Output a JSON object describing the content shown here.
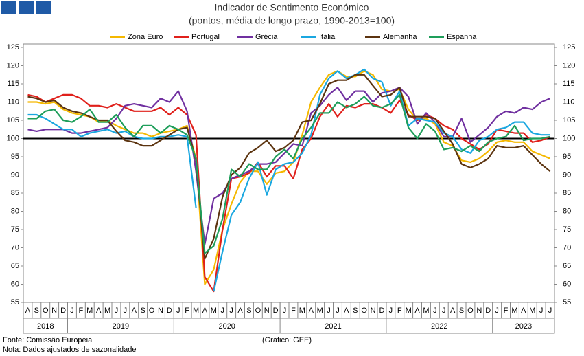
{
  "chart_data": {
    "type": "line",
    "title": "Indicador de Sentimento Económico",
    "subtitle": "(pontos, média de longo prazo, 1990-2013=100)",
    "source": "Fonte: Comissão Europeia",
    "note": "Nota: Dados ajustados de sazonalidade",
    "credit": "(Gráfico: GEE)",
    "categories": [
      "A",
      "S",
      "O",
      "N",
      "D",
      "J",
      "F",
      "M",
      "A",
      "M",
      "J",
      "J",
      "A",
      "S",
      "O",
      "N",
      "D",
      "J",
      "F",
      "M",
      "A",
      "M",
      "J",
      "J",
      "A",
      "S",
      "O",
      "N",
      "D",
      "J",
      "F",
      "M",
      "A",
      "M",
      "J",
      "J",
      "A",
      "S",
      "O",
      "N",
      "D",
      "J",
      "F",
      "M",
      "A",
      "M",
      "J",
      "J",
      "A",
      "S",
      "O",
      "N",
      "D",
      "J",
      "F",
      "M",
      "A",
      "M",
      "J",
      "J"
    ],
    "years": [
      "2018",
      "2019",
      "2020",
      "2021",
      "2022",
      "2023"
    ],
    "ylim": [
      55,
      125
    ],
    "yticks": [
      55,
      60,
      65,
      70,
      75,
      80,
      85,
      90,
      95,
      100,
      105,
      110,
      115,
      120,
      125
    ],
    "y2lim": [
      55,
      125
    ],
    "y2ticks": [
      55,
      60,
      65,
      70,
      75,
      80,
      85,
      90,
      95,
      100,
      105,
      110,
      115,
      120,
      125
    ],
    "reference_line": 100,
    "legend": "top",
    "series": [
      {
        "name": "Zona Euro",
        "color": "#f5b800",
        "values": [
          110,
          110,
          109.5,
          110,
          108,
          107,
          106.5,
          106,
          104.5,
          105,
          103.5,
          102.5,
          101.5,
          101.5,
          100.5,
          101.5,
          102,
          102.5,
          103.5,
          94.5,
          60,
          64,
          75,
          82,
          88,
          91,
          91,
          87.5,
          90.5,
          91,
          93.5,
          101,
          110,
          114,
          117.5,
          118.5,
          117,
          117,
          118.5,
          117.5,
          113.5,
          113,
          113.5,
          108,
          105,
          105.5,
          104,
          99,
          98,
          94,
          93.5,
          94.5,
          96.5,
          99,
          99.5,
          99,
          99,
          96.5,
          95.5,
          94.5
        ]
      },
      {
        "name": "Portugal",
        "color": "#e0201b",
        "values": [
          112,
          111.5,
          110,
          111,
          112,
          112,
          111,
          109,
          109,
          108.5,
          109.5,
          108.5,
          107.5,
          107.5,
          107.5,
          108.5,
          106.5,
          108.5,
          106.5,
          101,
          62,
          58,
          75,
          89,
          89.5,
          90.5,
          93.5,
          89.5,
          92.5,
          92.5,
          89,
          97,
          100,
          106,
          109.5,
          106,
          109,
          108.5,
          109.5,
          109.5,
          108.5,
          107,
          110.5,
          106.5,
          105,
          106.5,
          105.5,
          103.5,
          102.5,
          100,
          98.5,
          97,
          98.5,
          102.5,
          102,
          101.5,
          101.5,
          99,
          99.5,
          100.5
        ]
      },
      {
        "name": "Grécia",
        "color": "#7030a0",
        "values": [
          102.5,
          102,
          102.5,
          102.5,
          102.5,
          101.5,
          101.5,
          102,
          102.5,
          103,
          105.5,
          109,
          109.5,
          109,
          108.5,
          111,
          110,
          113,
          107.5,
          91,
          71,
          83.5,
          85,
          89,
          90,
          91,
          93,
          93,
          93.5,
          96,
          98.5,
          98,
          107,
          109,
          112,
          114,
          110.5,
          113,
          113,
          110,
          112.5,
          113,
          114,
          111.5,
          104,
          107,
          104.5,
          100.5,
          100.5,
          105.5,
          99,
          101,
          103,
          106,
          107.5,
          107,
          108.5,
          108,
          110,
          111
        ]
      },
      {
        "name": "Itália",
        "color": "#1aa7e0",
        "values": [
          106.5,
          106.5,
          105.5,
          104,
          102.5,
          102.5,
          100.5,
          101.5,
          102,
          102.5,
          101.5,
          102,
          100.5,
          100,
          100,
          100.5,
          100.5,
          101,
          100.5,
          81,
          null,
          58,
          69,
          79,
          82.5,
          89,
          93.5,
          84.5,
          91.5,
          93,
          93.5,
          96,
          101,
          112,
          116.5,
          118.5,
          116.5,
          117.5,
          119,
          116.5,
          115.5,
          109,
          113,
          103.5,
          105.5,
          105,
          104.5,
          101.5,
          100.5,
          97,
          96,
          99.5,
          100.5,
          102.5,
          103,
          104.5,
          104.5,
          101.5,
          101,
          101
        ]
      },
      {
        "name": "Alemanha",
        "color": "#5c3410",
        "values": [
          111.5,
          111,
          110,
          110.5,
          108.5,
          107.5,
          107,
          106,
          105,
          105,
          102,
          99.5,
          99,
          98,
          98,
          99.5,
          101,
          102.5,
          103,
          94,
          67,
          72.5,
          84,
          90,
          92,
          96,
          97.5,
          99.5,
          96.5,
          97.5,
          99.5,
          104.5,
          105,
          109.5,
          115,
          116,
          116,
          117.5,
          117.5,
          114.5,
          111.5,
          112,
          114,
          106,
          106,
          106,
          105.5,
          102,
          98.5,
          93,
          92,
          93,
          94.5,
          98,
          97.5,
          97.5,
          98,
          95.5,
          93,
          91
        ]
      },
      {
        "name": "Espanha",
        "color": "#1e9e5a",
        "values": [
          105.5,
          105.5,
          107.5,
          108,
          105,
          104.5,
          106,
          108,
          104.5,
          104.5,
          106.5,
          103,
          100.5,
          103.5,
          103.5,
          101.5,
          103.5,
          102.5,
          101,
          94.5,
          68.5,
          70.5,
          78,
          91.5,
          89.5,
          93,
          91.5,
          91.5,
          95,
          97,
          94.5,
          100,
          103,
          107,
          107,
          110,
          108.5,
          109.5,
          111.5,
          109,
          108.5,
          109.5,
          112,
          103,
          100,
          104,
          102,
          97,
          97.5,
          96.5,
          98,
          96.5,
          99,
          100,
          100.5,
          103.5,
          99.5,
          100,
          100,
          100.5
        ]
      }
    ]
  }
}
